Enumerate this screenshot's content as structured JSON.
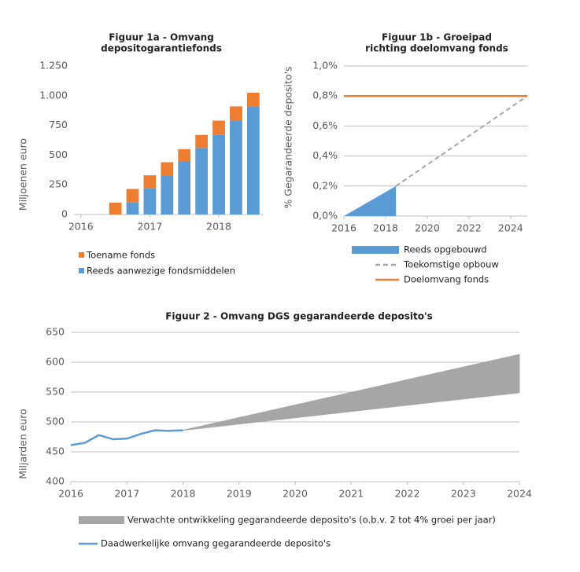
{
  "chart_data": [
    {
      "type": "bar",
      "stacked": true,
      "grid": false,
      "title": [
        "Figuur 1a - Omvang",
        "depositogarantiefonds"
      ],
      "ylabel": "Miljoenen euro",
      "x": [
        2016.5,
        2016.75,
        2017,
        2017.25,
        2017.5,
        2017.75,
        2018,
        2018.25,
        2018.5
      ],
      "xlim": [
        2015.9,
        2018.65
      ],
      "xticks": [
        2016,
        2017,
        2018
      ],
      "ylim": [
        0,
        1250
      ],
      "yticks": [
        0,
        250,
        500,
        750,
        {
          "value": 1000,
          "label": "1.000"
        },
        {
          "value": 1250,
          "label": "1.250"
        }
      ],
      "series": [
        {
          "name": "Reeds aanwezige fondsmiddelen",
          "color": "#5b9bd5",
          "values": [
            0,
            100,
            220,
            330,
            450,
            560,
            670,
            790,
            910
          ]
        },
        {
          "name": "Toename fonds",
          "color": "#ed7d31",
          "values": [
            100,
            115,
            110,
            110,
            100,
            110,
            120,
            120,
            115
          ]
        }
      ]
    },
    {
      "type": "line",
      "grid": true,
      "title": [
        "Figuur 1b - Groeipad",
        "richting doelomvang fonds"
      ],
      "ylabel": "% Gegarandeerde deposito's",
      "xlim": [
        2016,
        2024.8
      ],
      "xticks": [
        2016,
        2018,
        2020,
        2022,
        2024
      ],
      "ylim": [
        0,
        1.0
      ],
      "yticks": [
        {
          "value": 0,
          "label": "0,0%"
        },
        {
          "value": 0.2,
          "label": "0,2%"
        },
        {
          "value": 0.4,
          "label": "0,4%"
        },
        {
          "value": 0.6,
          "label": "0,6%"
        },
        {
          "value": 0.8,
          "label": "0,8%"
        },
        {
          "value": 1.0,
          "label": "1,0%"
        }
      ],
      "series": [
        {
          "name": "Reeds opgebouwd",
          "style": "area",
          "color": "#5b9bd5",
          "x": [
            2016,
            2018.5
          ],
          "values": [
            0,
            0.2
          ]
        },
        {
          "name": "Toekomstige opbouw",
          "style": "dashed",
          "color": "#a6a6a6",
          "x": [
            2018.5,
            2024.8
          ],
          "values": [
            0.2,
            0.8
          ]
        },
        {
          "name": "Doelomvang fonds",
          "style": "solid",
          "color": "#ed7d31",
          "x": [
            2016,
            2024.8
          ],
          "values": [
            0.8,
            0.8
          ]
        }
      ]
    },
    {
      "type": "line",
      "grid": true,
      "title": [
        "Figuur 2 - Omvang DGS gegarandeerde deposito's"
      ],
      "ylabel": "Miljarden euro",
      "xlim": [
        2016,
        2024
      ],
      "xticks": [
        2016,
        2017,
        2018,
        2019,
        2020,
        2021,
        2022,
        2023,
        2024
      ],
      "ylim": [
        400,
        650
      ],
      "yticks": [
        400,
        450,
        500,
        550,
        600,
        650
      ],
      "series": [
        {
          "name": "Verwachte ontwikkeling gegarandeerde deposito's  (o.b.v. 2 tot 4% groei per jaar)",
          "style": "band",
          "color": "#a6a6a6",
          "x": [
            2018,
            2024
          ],
          "low": [
            486,
            549
          ],
          "high": [
            486,
            613
          ]
        },
        {
          "name": "Daadwerkelijke omvang gegarandeerde deposito's",
          "style": "solid",
          "color": "#5b9bd5",
          "x": [
            2016,
            2016.25,
            2016.5,
            2016.75,
            2017,
            2017.25,
            2017.5,
            2017.75,
            2018
          ],
          "values": [
            461,
            465,
            478,
            471,
            472,
            480,
            486,
            485,
            486
          ]
        }
      ]
    }
  ]
}
